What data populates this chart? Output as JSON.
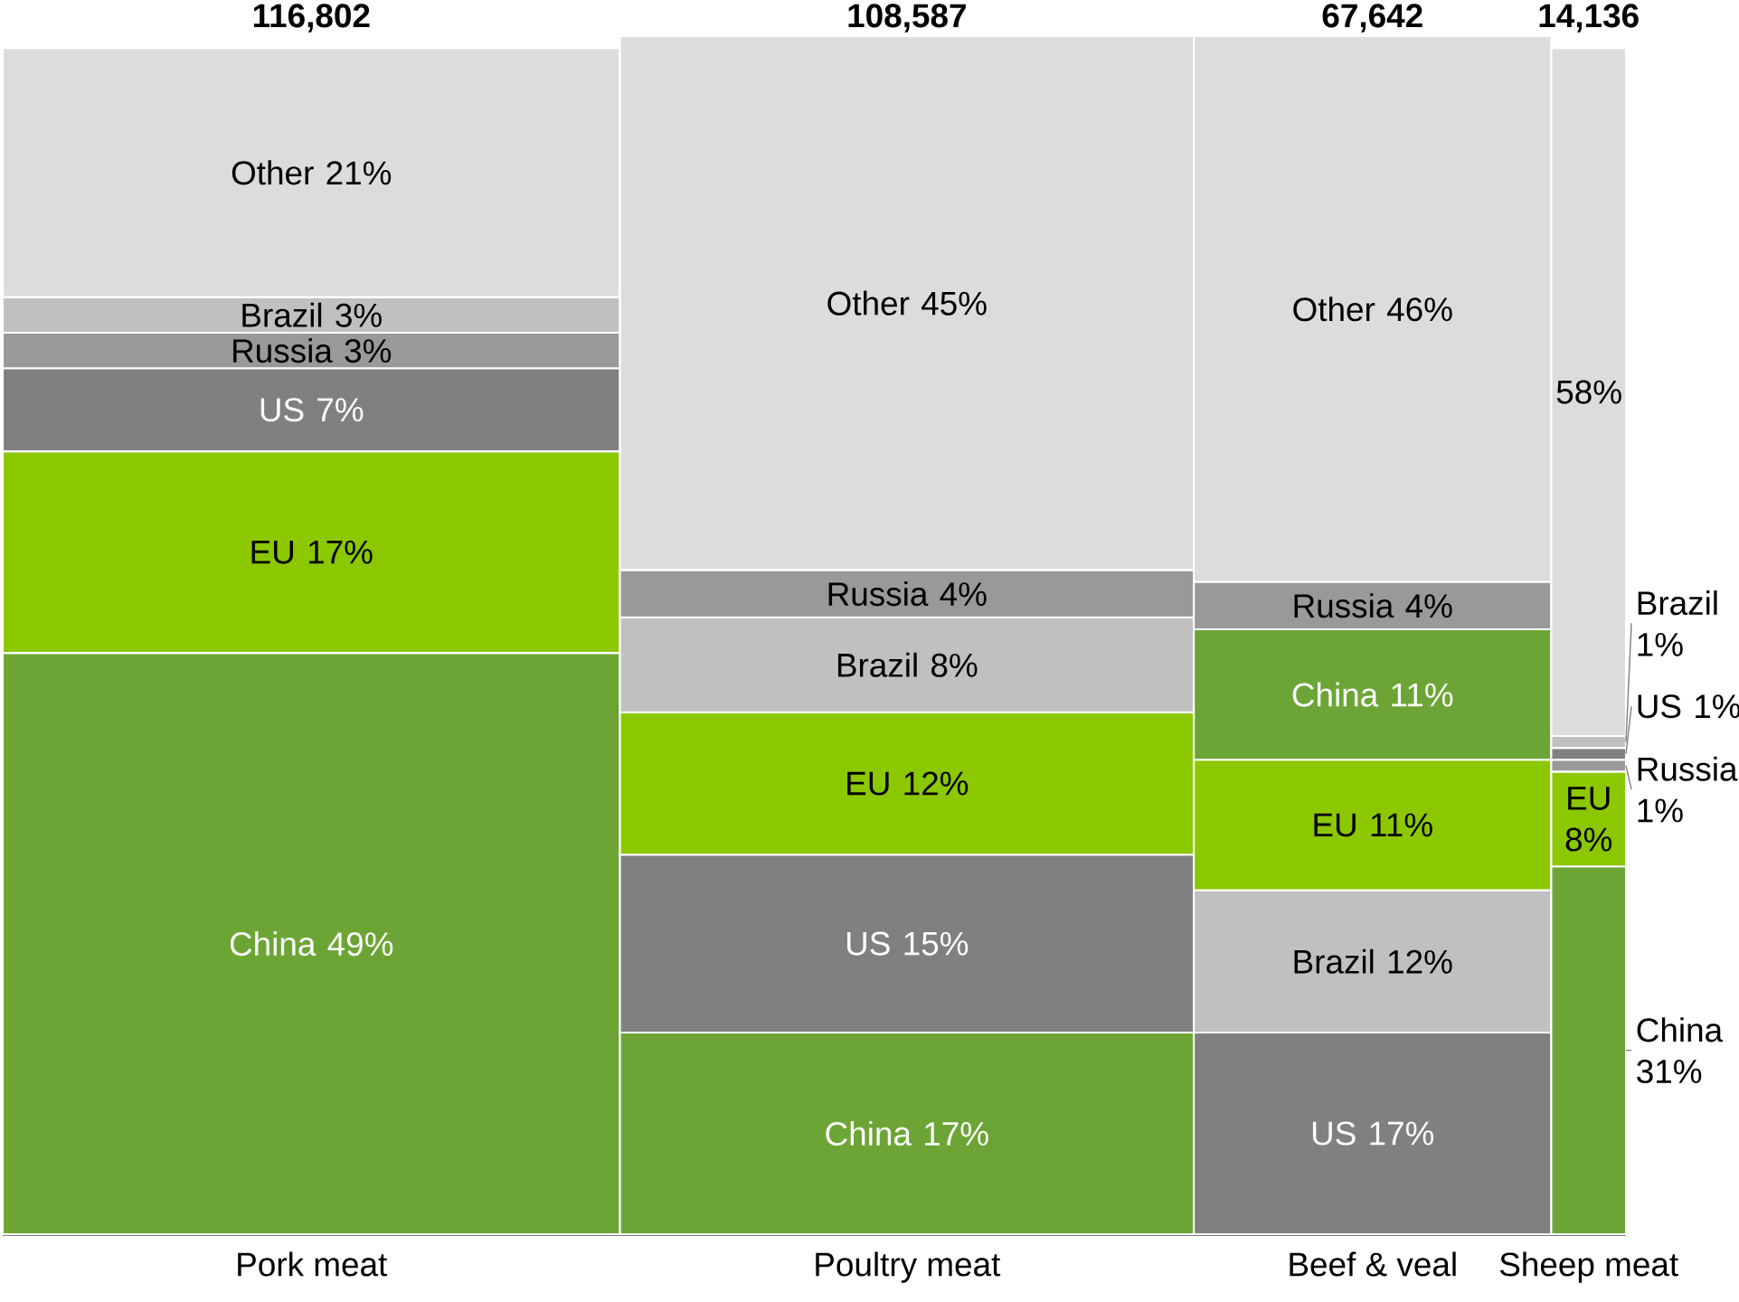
{
  "chart_data": {
    "type": "bar",
    "stacked": true,
    "categories": [
      "Pork meat",
      "Poultry meat",
      "Beef & veal",
      "Sheep meat"
    ],
    "annotations": [
      "116,802",
      "108,587",
      "67,642",
      "14,136"
    ],
    "series": [
      {
        "colors": [
          "#6ca535",
          "#6ca535",
          "#808080",
          "#6ca535"
        ],
        "values": [
          49,
          17,
          17,
          31
        ],
        "value_labels": [
          "China 49%",
          "China 17%",
          "US 17%",
          "China 31%"
        ]
      },
      {
        "colors": [
          "#8cc800",
          "#808080",
          "#c0c0c0",
          "#8cc800"
        ],
        "values": [
          17,
          15,
          12,
          8
        ],
        "value_labels": [
          "EU 17%",
          "US 15%",
          "Brazil 12%",
          "EU 8%"
        ]
      },
      {
        "colors": [
          "#808080",
          "#8cc800",
          "#8cc800",
          "#999999"
        ],
        "values": [
          7,
          12,
          11,
          1
        ],
        "value_labels": [
          "US 7%",
          "EU 12%",
          "EU 11%",
          "Russia 1%"
        ]
      },
      {
        "colors": [
          "#999999",
          "#c0c0c0",
          "#6ca535",
          "#808080"
        ],
        "values": [
          3,
          8,
          11,
          1
        ],
        "value_labels": [
          "Russia 3%",
          "Brazil 8%",
          "China 11%",
          "US 1%"
        ]
      },
      {
        "colors": [
          "#c0c0c0",
          "#999999",
          "#999999",
          "#c0c0c0"
        ],
        "values": [
          3,
          4,
          4,
          1
        ],
        "value_labels": [
          "Brazil 3%",
          "Russia 4%",
          "Russia 4%",
          "Brazil 1%"
        ]
      },
      {
        "colors": [
          "#dcdcde",
          "#dcdcde",
          "#dcdcde",
          "#dcdcde"
        ],
        "values": [
          21,
          45,
          46,
          58
        ],
        "value_labels": [
          "Other 21%",
          "Other 45%",
          "Other 46%",
          "58%"
        ]
      }
    ]
  }
}
